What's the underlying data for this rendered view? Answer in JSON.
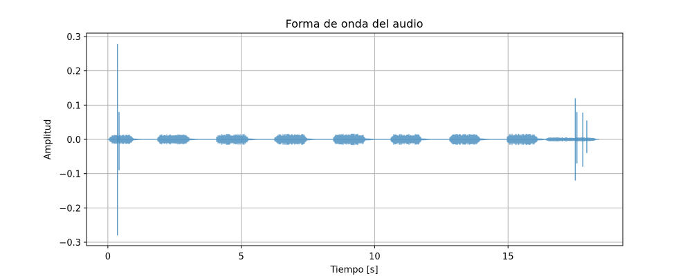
{
  "chart_data": {
    "type": "line",
    "title": "Forma de onda del audio",
    "xlabel": "Tiempo [s]",
    "ylabel": "Amplitud",
    "xlim": [
      -0.8,
      19.3
    ],
    "ylim": [
      -0.31,
      0.31
    ],
    "grid": true,
    "xticks": [
      {
        "value": 0,
        "label": "0"
      },
      {
        "value": 5,
        "label": "5"
      },
      {
        "value": 10,
        "label": "10"
      },
      {
        "value": 15,
        "label": "15"
      }
    ],
    "yticks": [
      {
        "value": 0.3,
        "label": "0.3"
      },
      {
        "value": 0.2,
        "label": "0.2"
      },
      {
        "value": 0.1,
        "label": "0.1"
      },
      {
        "value": 0.0,
        "label": "0.0"
      },
      {
        "value": -0.1,
        "label": "−0.1"
      },
      {
        "value": -0.2,
        "label": "−0.2"
      },
      {
        "value": -0.3,
        "label": "−0.3"
      }
    ],
    "series": [
      {
        "color": "#4d92c2",
        "duration": 18.4,
        "bursts": [
          {
            "start": 0.05,
            "end": 0.95,
            "amplitude": 0.014
          },
          {
            "start": 1.85,
            "end": 3.05,
            "amplitude": 0.015
          },
          {
            "start": 4.05,
            "end": 5.25,
            "amplitude": 0.016
          },
          {
            "start": 6.25,
            "end": 7.45,
            "amplitude": 0.016
          },
          {
            "start": 8.45,
            "end": 9.65,
            "amplitude": 0.017
          },
          {
            "start": 10.6,
            "end": 11.75,
            "amplitude": 0.016
          },
          {
            "start": 12.8,
            "end": 13.95,
            "amplitude": 0.016
          },
          {
            "start": 14.95,
            "end": 16.1,
            "amplitude": 0.017
          },
          {
            "start": 16.4,
            "end": 18.3,
            "amplitude": 0.006
          }
        ],
        "spikes": [
          {
            "t": 0.36,
            "min": -0.28,
            "max": 0.278
          },
          {
            "t": 0.42,
            "min": -0.09,
            "max": 0.08
          },
          {
            "t": 17.52,
            "min": -0.12,
            "max": 0.12
          },
          {
            "t": 17.58,
            "min": -0.07,
            "max": 0.08
          },
          {
            "t": 17.8,
            "min": -0.08,
            "max": 0.078
          },
          {
            "t": 17.95,
            "min": -0.04,
            "max": 0.055
          }
        ]
      }
    ]
  }
}
